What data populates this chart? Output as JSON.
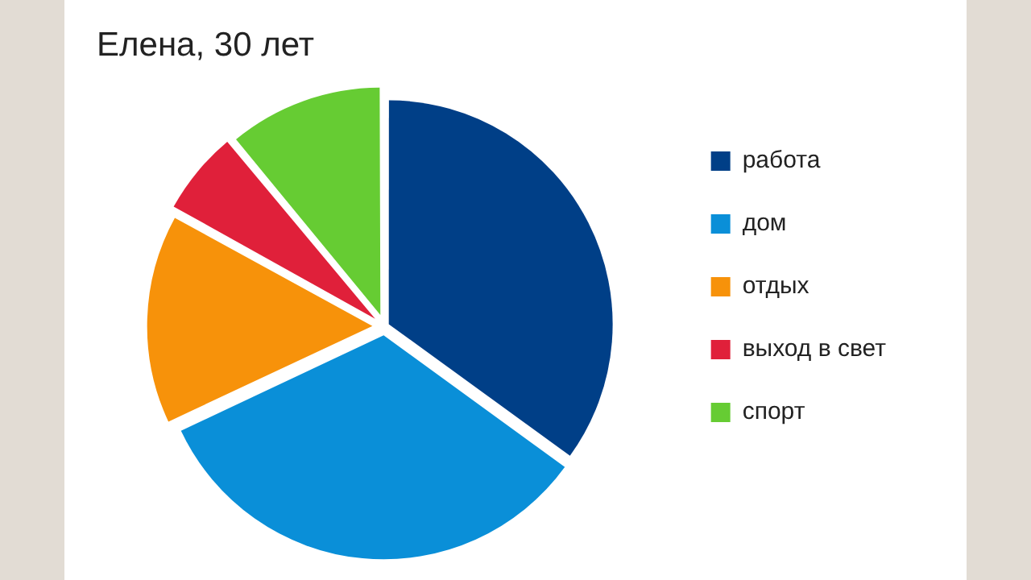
{
  "chart_data": {
    "type": "pie",
    "title": "Елена, 30 лет",
    "categories": [
      "работа",
      "дом",
      "отдых",
      "выход в свет",
      "спорт"
    ],
    "values": [
      35,
      33,
      15,
      6,
      11
    ],
    "colors": [
      "#003f87",
      "#0a8fd8",
      "#f7920a",
      "#e0203a",
      "#66cc33"
    ],
    "legend": "right"
  }
}
